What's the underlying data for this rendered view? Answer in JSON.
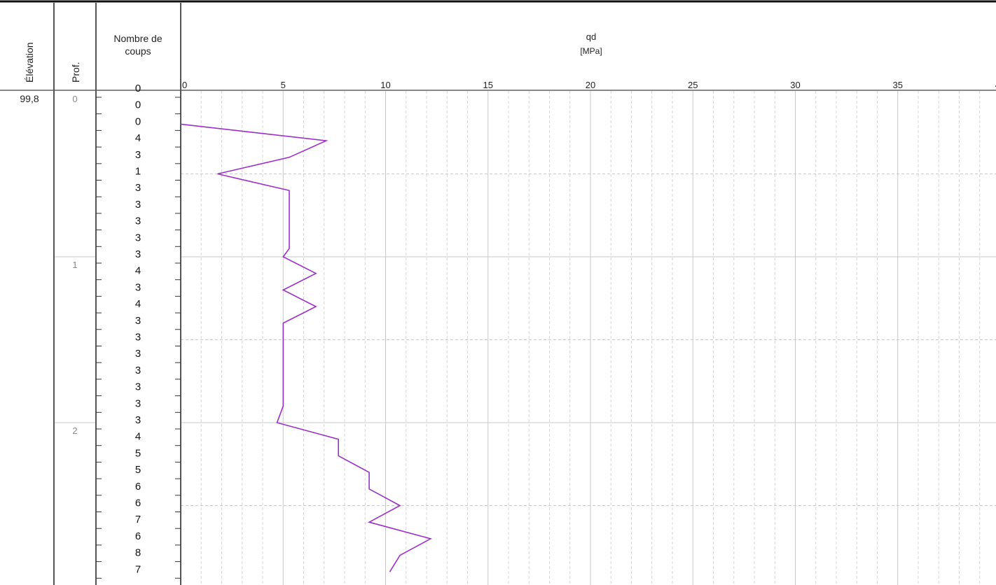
{
  "headers": {
    "elevation": "Élévation",
    "depth": "Prof.",
    "blows_line1": "Nombre de",
    "blows_line2": "coups",
    "qd_title": "qd",
    "qd_unit": "[MPa]"
  },
  "elevation_value": "99,8",
  "depth_labels": [
    "0",
    "1",
    "2"
  ],
  "blow_counts": [
    "0",
    "0",
    "0",
    "4",
    "3",
    "1",
    "3",
    "3",
    "3",
    "3",
    "3",
    "4",
    "3",
    "4",
    "3",
    "3",
    "3",
    "3",
    "3",
    "3",
    "3",
    "4",
    "5",
    "5",
    "6",
    "6",
    "7",
    "6",
    "8",
    "7"
  ],
  "colors": {
    "series": "#9b30c8",
    "frame": "#555555",
    "grid_major": "#c8c8c8",
    "grid_minor": "#d4d4d4"
  },
  "chart_data": {
    "type": "line",
    "title": "qd",
    "xlabel": "[MPa]",
    "ylabel": "Prof.",
    "xlim": [
      0,
      40
    ],
    "ylim": [
      0,
      3
    ],
    "x_ticks": [
      "0",
      "5",
      "10",
      "15",
      "20",
      "25",
      "30",
      "35",
      "40"
    ],
    "series": [
      {
        "x": [
          0,
          7.1,
          5.3,
          1.8,
          5.3,
          5.3,
          5.3,
          5.3,
          5.3,
          5.0,
          6.6,
          5.0,
          6.6,
          5.0,
          5.0,
          5.0,
          5.0,
          5.0,
          5.0,
          4.7,
          7.7,
          7.7,
          9.2,
          9.2,
          10.7,
          9.2,
          12.2,
          10.7,
          10.2
        ],
        "y": [
          0.2,
          0.3,
          0.4,
          0.5,
          0.6,
          0.7,
          0.8,
          0.9,
          0.95,
          1.0,
          1.1,
          1.2,
          1.3,
          1.4,
          1.5,
          1.6,
          1.7,
          1.8,
          1.9,
          2.0,
          2.1,
          2.2,
          2.3,
          2.4,
          2.5,
          2.6,
          2.7,
          2.8,
          2.9
        ]
      }
    ]
  }
}
